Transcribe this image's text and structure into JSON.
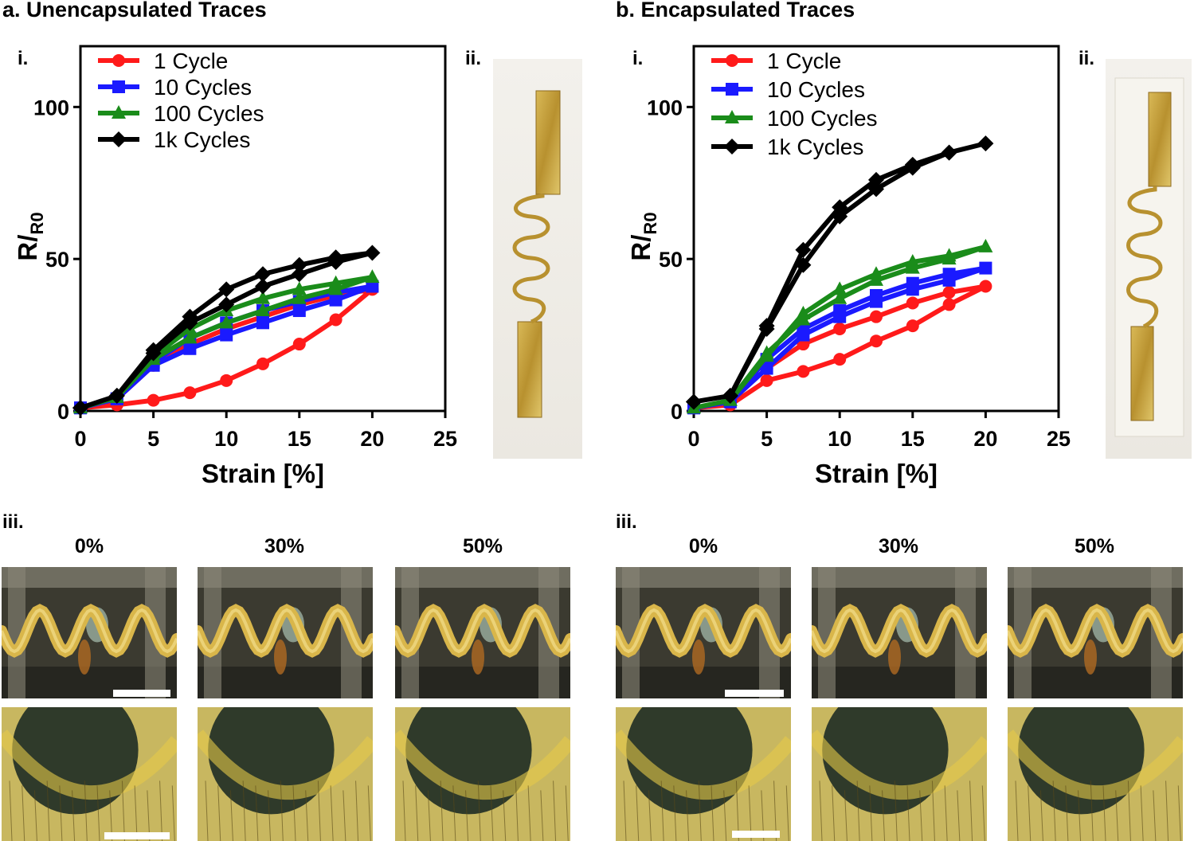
{
  "figure": {
    "panel_a_title": "a. Unencapsulated Traces",
    "panel_b_title": "b. Encapsulated Traces",
    "label_i": "i.",
    "label_ii": "ii.",
    "label_iii": "iii.",
    "strain_labels": [
      "0%",
      "30%",
      "50%"
    ]
  },
  "colors": {
    "red": "#ff1a1a",
    "blue": "#1a1aff",
    "green": "#1a8c1a",
    "black": "#000000",
    "gold": "#c9a544",
    "gold_dark": "#8d6a1f"
  },
  "chart_data": [
    {
      "type": "line",
      "title": "Unencapsulated Traces",
      "xlabel": "Strain [%]",
      "ylabel": "R/R0",
      "xlim": [
        0,
        25
      ],
      "ylim": [
        0,
        120
      ],
      "xticks": [
        0,
        5,
        10,
        15,
        20,
        25
      ],
      "yticks": [
        0,
        50,
        100
      ],
      "legend_position": "top-left",
      "series": [
        {
          "name": "1 Cycle",
          "color": "red",
          "marker": "circle",
          "x": [
            0,
            2.5,
            5,
            7.5,
            10,
            12.5,
            15,
            17.5,
            20,
            17.5,
            15,
            12.5,
            10,
            7.5,
            5,
            2.5,
            0
          ],
          "y": [
            1,
            2,
            3.5,
            6,
            10,
            15.5,
            22,
            30,
            40,
            38,
            35,
            31,
            27,
            22,
            15,
            4,
            1
          ]
        },
        {
          "name": "10 Cycles",
          "color": "blue",
          "marker": "square",
          "x": [
            0,
            2.5,
            5,
            7.5,
            10,
            12.5,
            15,
            17.5,
            20,
            17.5,
            15,
            12.5,
            10,
            7.5,
            5,
            2.5,
            0
          ],
          "y": [
            1,
            4,
            15,
            20.5,
            25,
            29,
            33,
            36.5,
            41,
            39,
            36,
            33,
            29,
            24,
            16,
            4,
            1
          ]
        },
        {
          "name": "100 Cycles",
          "color": "green",
          "marker": "triangle",
          "x": [
            0,
            2.5,
            5,
            7.5,
            10,
            12.5,
            15,
            17.5,
            20,
            17.5,
            15,
            12.5,
            10,
            7.5,
            5,
            2.5,
            0
          ],
          "y": [
            1,
            4.5,
            17,
            24,
            29,
            33,
            37,
            40,
            44,
            42,
            40,
            37,
            33,
            27,
            18,
            4.5,
            1
          ]
        },
        {
          "name": "1k Cycles",
          "color": "black",
          "marker": "diamond",
          "x": [
            0,
            2.5,
            5,
            7.5,
            10,
            12.5,
            15,
            17.5,
            20,
            17.5,
            15,
            12.5,
            10,
            7.5,
            5,
            2.5,
            0
          ],
          "y": [
            1,
            5,
            20,
            31,
            40,
            45,
            48,
            50.5,
            52,
            49,
            45,
            41,
            35,
            29,
            19,
            5,
            1
          ]
        }
      ]
    },
    {
      "type": "line",
      "title": "Encapsulated Traces",
      "xlabel": "Strain [%]",
      "ylabel": "R/R0",
      "xlim": [
        0,
        25
      ],
      "ylim": [
        0,
        120
      ],
      "xticks": [
        0,
        5,
        10,
        15,
        20,
        25
      ],
      "yticks": [
        0,
        50,
        100
      ],
      "legend_position": "top-left",
      "series": [
        {
          "name": "1 Cycle",
          "color": "red",
          "marker": "circle",
          "x": [
            0,
            2.5,
            5,
            7.5,
            10,
            12.5,
            15,
            17.5,
            20,
            17.5,
            15,
            12.5,
            10,
            7.5,
            5,
            2.5,
            0
          ],
          "y": [
            1,
            2,
            10,
            13,
            17,
            23,
            28,
            35,
            41,
            39,
            35.5,
            31,
            27,
            22,
            14,
            3,
            1
          ]
        },
        {
          "name": "10 Cycles",
          "color": "blue",
          "marker": "square",
          "x": [
            0,
            2.5,
            5,
            7.5,
            10,
            12.5,
            15,
            17.5,
            20,
            17.5,
            15,
            12.5,
            10,
            7.5,
            5,
            2.5,
            0
          ],
          "y": [
            1,
            3,
            14,
            25,
            31,
            36,
            40,
            43,
            47,
            45,
            42,
            38,
            33,
            27,
            17,
            3,
            1
          ]
        },
        {
          "name": "100 Cycles",
          "color": "green",
          "marker": "triangle",
          "x": [
            0,
            2.5,
            5,
            7.5,
            10,
            12.5,
            15,
            17.5,
            20,
            17.5,
            15,
            12.5,
            10,
            7.5,
            5,
            2.5,
            0
          ],
          "y": [
            1,
            3.5,
            18,
            32,
            40,
            45,
            49,
            51,
            54,
            50,
            47,
            43,
            37,
            30,
            19,
            3.5,
            1
          ]
        },
        {
          "name": "1k Cycles",
          "color": "black",
          "marker": "diamond",
          "x": [
            0,
            2.5,
            5,
            7.5,
            10,
            12.5,
            15,
            17.5,
            20,
            17.5,
            15,
            12.5,
            10,
            7.5,
            5,
            2.5,
            0
          ],
          "y": [
            3,
            5,
            28,
            53,
            67,
            76,
            81,
            85,
            88,
            85,
            80,
            73,
            64,
            48,
            27,
            5,
            3
          ]
        }
      ]
    }
  ]
}
